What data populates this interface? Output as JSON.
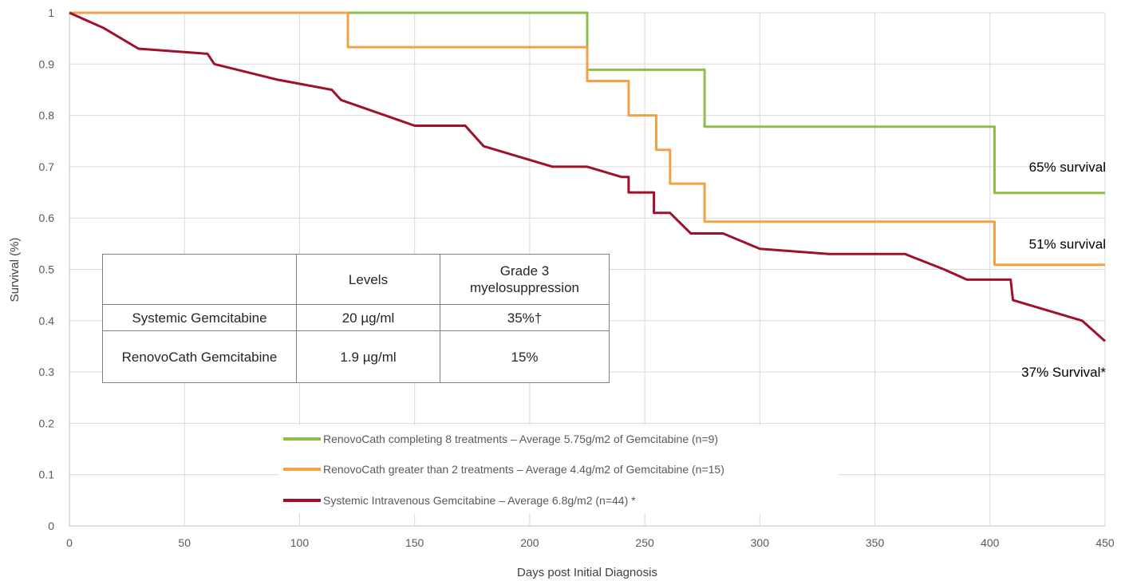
{
  "chart_data": {
    "type": "line",
    "step": true,
    "xlabel": "Days post Initial Diagnosis",
    "ylabel": "Survival (%)",
    "xlim": [
      0,
      450
    ],
    "ylim": [
      0,
      1
    ],
    "x_ticks": [
      0,
      50,
      100,
      150,
      200,
      250,
      300,
      350,
      400,
      450
    ],
    "y_ticks": [
      0,
      0.1,
      0.2,
      0.3,
      0.4,
      0.5,
      0.6,
      0.7,
      0.8,
      0.9,
      1
    ],
    "x_tick_labels": [
      "0",
      "50",
      "100",
      "150",
      "200",
      "250",
      "300",
      "350",
      "400",
      "450"
    ],
    "y_tick_labels": [
      "0",
      "0.1",
      "0.2",
      "0.3",
      "0.4",
      "0.5",
      "0.6",
      "0.7",
      "0.8",
      "0.9",
      "1"
    ],
    "grid": "vertical and horizontal",
    "legend_position": "bottom-center inside plot",
    "series": [
      {
        "name": "RenovoCath completing 8 treatments – Average 5.75g/m2 of Gemcitabine (n=9)",
        "color": "#8fbc4a",
        "points": [
          [
            0,
            1
          ],
          [
            225,
            1
          ],
          [
            225,
            0.889
          ],
          [
            276,
            0.889
          ],
          [
            276,
            0.778
          ],
          [
            402,
            0.778
          ],
          [
            402,
            0.649
          ],
          [
            450,
            0.649
          ]
        ]
      },
      {
        "name": "RenovoCath  greater than 2 treatments – Average 4.4g/m2 of Gemcitabine (n=15)",
        "color": "#f4a045",
        "points": [
          [
            0,
            1
          ],
          [
            121,
            1
          ],
          [
            121,
            0.933
          ],
          [
            225,
            0.933
          ],
          [
            225,
            0.867
          ],
          [
            243,
            0.867
          ],
          [
            243,
            0.8
          ],
          [
            255,
            0.8
          ],
          [
            255,
            0.733
          ],
          [
            261,
            0.733
          ],
          [
            261,
            0.667
          ],
          [
            276,
            0.667
          ],
          [
            276,
            0.593
          ],
          [
            402,
            0.593
          ],
          [
            402,
            0.509
          ],
          [
            450,
            0.509
          ]
        ]
      },
      {
        "name": "Systemic Intravenous Gemcitabine – Average 6.8g/m2  (n=44) *",
        "color": "#a0102b",
        "points": [
          [
            0,
            1
          ],
          [
            15,
            0.97
          ],
          [
            30,
            0.93
          ],
          [
            60,
            0.92
          ],
          [
            63,
            0.9
          ],
          [
            90,
            0.87
          ],
          [
            114,
            0.85
          ],
          [
            118,
            0.83
          ],
          [
            150,
            0.78
          ],
          [
            172,
            0.78
          ],
          [
            180,
            0.74
          ],
          [
            210,
            0.7
          ],
          [
            225,
            0.7
          ],
          [
            240,
            0.68
          ],
          [
            243,
            0.68
          ],
          [
            243,
            0.65
          ],
          [
            254,
            0.65
          ],
          [
            254,
            0.61
          ],
          [
            261,
            0.61
          ],
          [
            270,
            0.57
          ],
          [
            284,
            0.57
          ],
          [
            300,
            0.54
          ],
          [
            330,
            0.53
          ],
          [
            363,
            0.53
          ],
          [
            380,
            0.5
          ],
          [
            390,
            0.48
          ],
          [
            409,
            0.48
          ],
          [
            410,
            0.44
          ],
          [
            440,
            0.4
          ],
          [
            450,
            0.36
          ]
        ]
      }
    ],
    "annotations": [
      {
        "text": "65% survival",
        "x": 450,
        "y": 0.7
      },
      {
        "text": "51% survival",
        "x": 450,
        "y": 0.55
      },
      {
        "text": "37% Survival*",
        "x": 450,
        "y": 0.3
      }
    ]
  },
  "table": {
    "header": [
      "",
      "Levels",
      "Grade 3 myelosuppression"
    ],
    "rows": [
      [
        "Systemic Gemcitabine",
        "20 µg/ml",
        "35%†"
      ],
      [
        "RenovoCath Gemcitabine",
        "1.9 µg/ml",
        "15%"
      ]
    ]
  }
}
